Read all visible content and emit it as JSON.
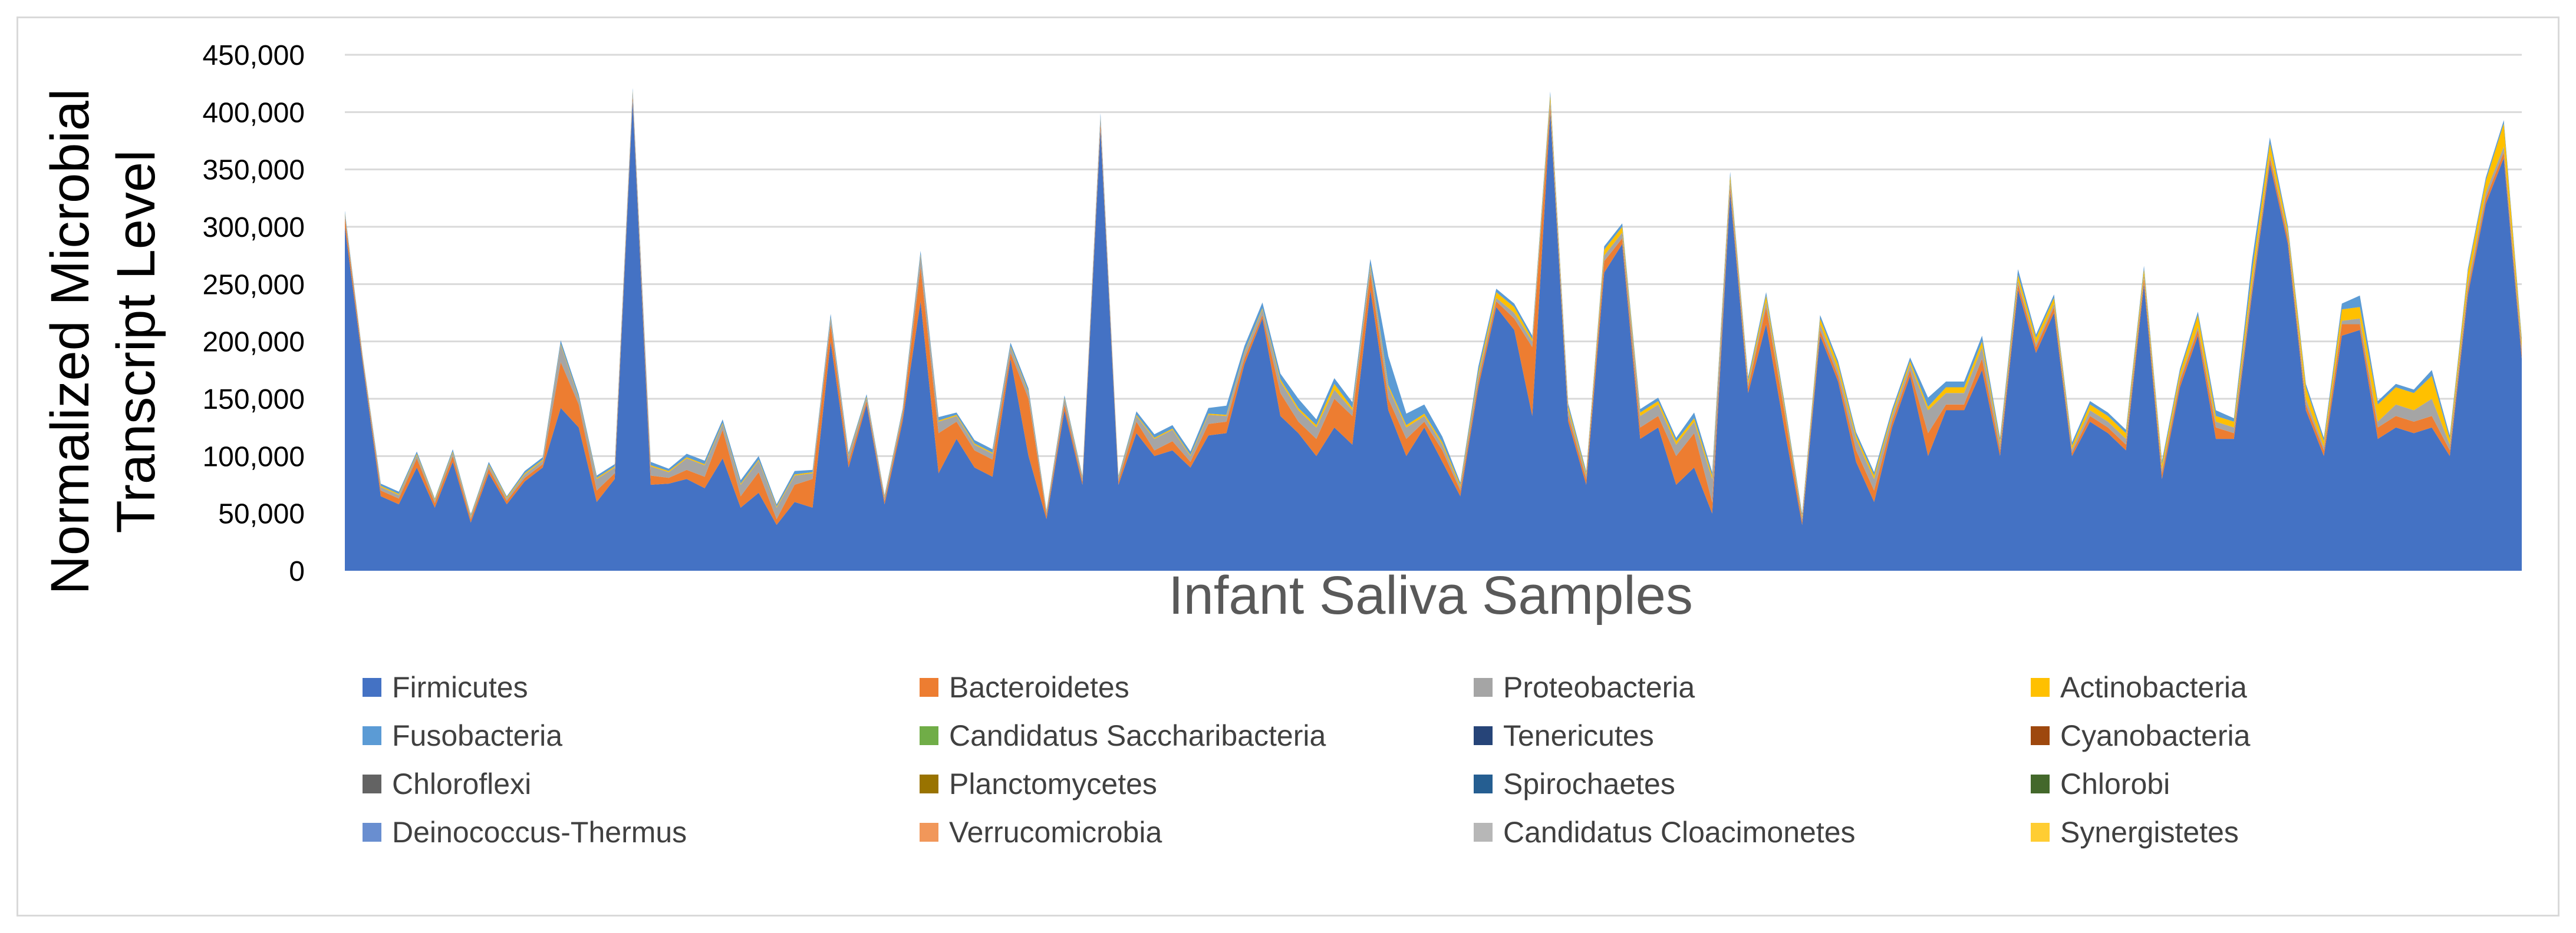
{
  "chart_data": {
    "type": "area",
    "stacked": true,
    "title": "",
    "ylabel": "Normalized Microbial Transcript Level",
    "xlabel": "Infant Saliva Samples",
    "ylim": [
      0,
      450000
    ],
    "yticks": [
      0,
      50000,
      100000,
      150000,
      200000,
      250000,
      300000,
      350000,
      400000,
      450000
    ],
    "ytick_labels": [
      "0",
      "50,000",
      "100,000",
      "150,000",
      "200,000",
      "250,000",
      "300,000",
      "350,000",
      "400,000",
      "450,000"
    ],
    "grid": true,
    "legend_position": "bottom",
    "legend": [
      {
        "name": "Firmicutes",
        "color": "#4472C4"
      },
      {
        "name": "Bacteroidetes",
        "color": "#ED7D31"
      },
      {
        "name": "Proteobacteria",
        "color": "#A5A5A5"
      },
      {
        "name": "Actinobacteria",
        "color": "#FFC000"
      },
      {
        "name": "Fusobacteria",
        "color": "#5B9BD5"
      },
      {
        "name": "Candidatus Saccharibacteria",
        "color": "#70AD47"
      },
      {
        "name": "Tenericutes",
        "color": "#264478"
      },
      {
        "name": "Cyanobacteria",
        "color": "#9E480E"
      },
      {
        "name": "Chloroflexi",
        "color": "#636363"
      },
      {
        "name": "Planctomycetes",
        "color": "#997300"
      },
      {
        "name": "Spirochaetes",
        "color": "#255E91"
      },
      {
        "name": "Chlorobi",
        "color": "#43682B"
      },
      {
        "name": "Deinococcus-Thermus",
        "color": "#698ED0"
      },
      {
        "name": "Verrucomicrobia",
        "color": "#F1975A"
      },
      {
        "name": "Candidatus Cloacimonetes",
        "color": "#B7B7B7"
      },
      {
        "name": "Synergistetes",
        "color": "#FFCD33"
      }
    ],
    "series_note": "Approximate stacked values per sample; minor phyla are near zero and not visible.",
    "series": [
      {
        "name": "Firmicutes",
        "values": [
          300000,
          180000,
          65000,
          58000,
          90000,
          55000,
          95000,
          42000,
          85000,
          58000,
          78000,
          90000,
          142000,
          125000,
          60000,
          80000,
          410000,
          75000,
          76000,
          80000,
          72000,
          98000,
          55000,
          68000,
          40000,
          60000,
          55000,
          200000,
          90000,
          145000,
          58000,
          130000,
          235000,
          85000,
          115000,
          90000,
          82000,
          185000,
          100000,
          45000,
          140000,
          75000,
          385000,
          75000,
          120000,
          100000,
          105000,
          90000,
          118000,
          120000,
          180000,
          220000,
          135000,
          120000,
          100000,
          125000,
          110000,
          245000,
          140000,
          100000,
          125000,
          95000,
          65000,
          160000,
          230000,
          210000,
          135000,
          400000,
          130000,
          75000,
          260000,
          285000,
          115000,
          125000,
          75000,
          90000,
          50000,
          330000,
          155000,
          215000,
          125000,
          40000,
          205000,
          165000,
          95000,
          60000,
          125000,
          170000,
          100000,
          140000,
          140000,
          175000,
          100000,
          245000,
          190000,
          225000,
          100000,
          130000,
          120000,
          105000,
          250000,
          80000,
          160000,
          205000,
          115000,
          115000,
          240000,
          355000,
          285000,
          140000,
          100000,
          205000,
          210000,
          115000,
          125000,
          120000,
          125000,
          100000,
          240000,
          320000,
          360000,
          185000
        ]
      },
      {
        "name": "Bacteroidetes",
        "values": [
          8000,
          3000,
          5000,
          5000,
          8000,
          4000,
          5000,
          3000,
          4000,
          3000,
          3000,
          3000,
          40000,
          20000,
          10000,
          5000,
          3000,
          8000,
          5000,
          8000,
          10000,
          25000,
          10000,
          18000,
          5000,
          15000,
          25000,
          15000,
          5000,
          3000,
          3000,
          5000,
          30000,
          35000,
          15000,
          15000,
          15000,
          5000,
          50000,
          3000,
          5000,
          3000,
          5000,
          3000,
          10000,
          5000,
          8000,
          5000,
          10000,
          10000,
          5000,
          3000,
          20000,
          10000,
          15000,
          25000,
          25000,
          15000,
          10000,
          15000,
          5000,
          10000,
          5000,
          5000,
          5000,
          10000,
          60000,
          5000,
          5000,
          5000,
          10000,
          5000,
          10000,
          10000,
          25000,
          30000,
          10000,
          5000,
          5000,
          15000,
          15000,
          3000,
          5000,
          5000,
          10000,
          10000,
          5000,
          5000,
          20000,
          5000,
          5000,
          10000,
          5000,
          5000,
          5000,
          5000,
          3000,
          5000,
          5000,
          5000,
          5000,
          5000,
          5000,
          5000,
          10000,
          5000,
          5000,
          5000,
          5000,
          5000,
          5000,
          10000,
          5000,
          10000,
          10000,
          10000,
          10000,
          5000,
          5000,
          5000,
          5000,
          5000
        ]
      },
      {
        "name": "Proteobacteria",
        "values": [
          3000,
          2000,
          3000,
          3000,
          3000,
          2000,
          3000,
          2000,
          3000,
          2000,
          3000,
          3000,
          15000,
          5000,
          10000,
          5000,
          5000,
          8000,
          5000,
          10000,
          10000,
          5000,
          10000,
          10000,
          10000,
          8000,
          5000,
          5000,
          5000,
          3000,
          3000,
          3000,
          10000,
          10000,
          5000,
          5000,
          5000,
          5000,
          5000,
          3000,
          5000,
          3000,
          5000,
          3000,
          5000,
          10000,
          10000,
          5000,
          8000,
          5000,
          5000,
          5000,
          10000,
          10000,
          10000,
          8000,
          5000,
          5000,
          10000,
          10000,
          5000,
          5000,
          3000,
          5000,
          3000,
          5000,
          5000,
          5000,
          5000,
          3000,
          5000,
          5000,
          10000,
          10000,
          10000,
          10000,
          20000,
          5000,
          3000,
          5000,
          3000,
          3000,
          5000,
          5000,
          10000,
          10000,
          5000,
          5000,
          20000,
          10000,
          10000,
          10000,
          5000,
          3000,
          3000,
          3000,
          3000,
          5000,
          5000,
          5000,
          3000,
          3000,
          3000,
          3000,
          5000,
          5000,
          5000,
          3000,
          3000,
          5000,
          3000,
          3000,
          5000,
          5000,
          10000,
          10000,
          15000,
          5000,
          5000,
          5000,
          5000,
          5000
        ]
      },
      {
        "name": "Actinobacteria",
        "values": [
          1000,
          1000,
          1000,
          1000,
          1000,
          1000,
          1000,
          1000,
          1000,
          1000,
          1000,
          1000,
          1000,
          1000,
          1000,
          1000,
          1000,
          1000,
          1000,
          1000,
          1000,
          1000,
          1000,
          1000,
          1000,
          1000,
          1000,
          1000,
          1000,
          1000,
          1000,
          1000,
          1000,
          1000,
          1000,
          1000,
          1000,
          1000,
          1000,
          1000,
          1000,
          1000,
          1000,
          1000,
          1000,
          1000,
          1000,
          1000,
          1000,
          1000,
          1000,
          1000,
          2000,
          2000,
          2000,
          5000,
          2000,
          2000,
          2000,
          2000,
          2000,
          2000,
          2000,
          3000,
          5000,
          5000,
          2000,
          5000,
          3000,
          2000,
          5000,
          5000,
          3000,
          3000,
          3000,
          3000,
          3000,
          5000,
          3000,
          5000,
          3000,
          2000,
          5000,
          5000,
          3000,
          3000,
          3000,
          3000,
          3000,
          5000,
          5000,
          5000,
          3000,
          5000,
          5000,
          5000,
          3000,
          5000,
          5000,
          5000,
          5000,
          5000,
          5000,
          10000,
          5000,
          5000,
          10000,
          10000,
          5000,
          10000,
          5000,
          10000,
          10000,
          15000,
          15000,
          15000,
          20000,
          5000,
          10000,
          10000,
          20000,
          5000
        ]
      },
      {
        "name": "Fusobacteria",
        "values": [
          2000,
          1000,
          2000,
          2000,
          2000,
          1000,
          2000,
          1000,
          2000,
          1000,
          2000,
          2000,
          3000,
          3000,
          2000,
          2000,
          2000,
          3000,
          2000,
          3000,
          3000,
          3000,
          3000,
          3000,
          2000,
          3000,
          2000,
          3000,
          2000,
          2000,
          1000,
          2000,
          3000,
          3000,
          2000,
          3000,
          3000,
          3000,
          3000,
          1000,
          2000,
          1000,
          3000,
          1000,
          3000,
          3000,
          3000,
          3000,
          5000,
          8000,
          5000,
          5000,
          5000,
          8000,
          5000,
          5000,
          5000,
          5000,
          25000,
          10000,
          8000,
          5000,
          2000,
          5000,
          3000,
          3000,
          3000,
          3000,
          3000,
          2000,
          3000,
          3000,
          3000,
          3000,
          3000,
          5000,
          3000,
          3000,
          3000,
          3000,
          3000,
          2000,
          3000,
          3000,
          3000,
          3000,
          3000,
          3000,
          8000,
          5000,
          5000,
          5000,
          3000,
          5000,
          3000,
          3000,
          3000,
          3000,
          3000,
          3000,
          3000,
          3000,
          3000,
          3000,
          5000,
          3000,
          10000,
          5000,
          3000,
          3000,
          3000,
          5000,
          10000,
          3000,
          3000,
          3000,
          5000,
          3000,
          3000,
          3000,
          3000,
          3000
        ]
      }
    ]
  }
}
